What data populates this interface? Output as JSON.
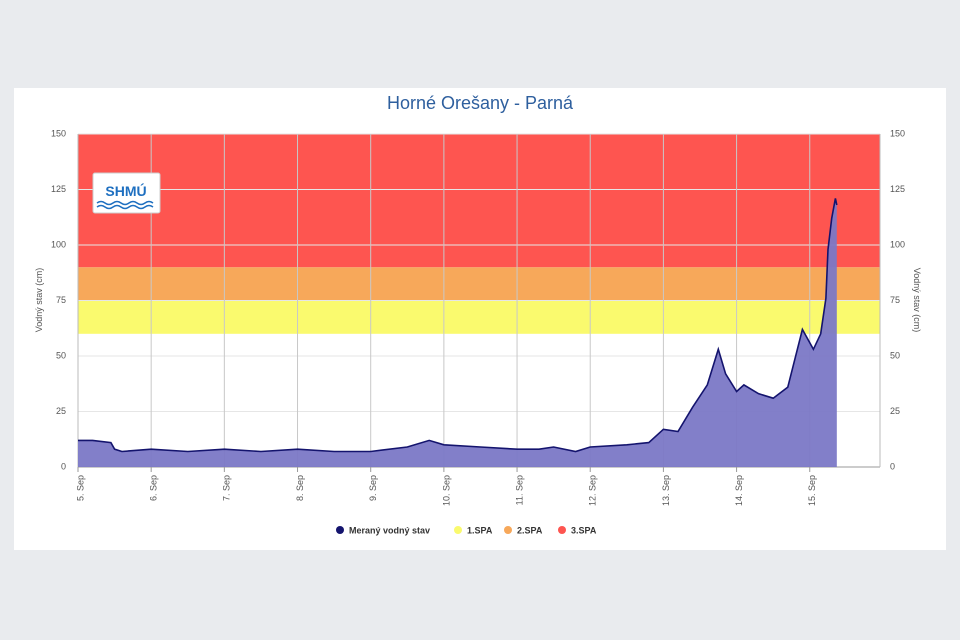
{
  "chart_data": {
    "type": "area",
    "title": "Horné Orešany - Parná",
    "y_label": "Vodný stav (cm)",
    "y2_label": "Vodný stav (cm)",
    "logo_text": "SHMÚ",
    "xlim": [
      5,
      15.96
    ],
    "xticks": [
      {
        "value": 5,
        "label": "5. Sep"
      },
      {
        "value": 6,
        "label": "6. Sep"
      },
      {
        "value": 7,
        "label": "7. Sep"
      },
      {
        "value": 8,
        "label": "8. Sep"
      },
      {
        "value": 9,
        "label": "9. Sep"
      },
      {
        "value": 10,
        "label": "10. Sep"
      },
      {
        "value": 11,
        "label": "11. Sep"
      },
      {
        "value": 12,
        "label": "12. Sep"
      },
      {
        "value": 13,
        "label": "13. Sep"
      },
      {
        "value": 14,
        "label": "14. Sep"
      },
      {
        "value": 15,
        "label": "15. Sep"
      }
    ],
    "ylim": [
      0,
      150
    ],
    "yticks": [
      0,
      25,
      50,
      75,
      100,
      125,
      150
    ],
    "y2lim": [
      0,
      150
    ],
    "y2ticks": [
      0,
      25,
      50,
      75,
      100,
      125,
      150
    ],
    "grid": true,
    "bands": [
      {
        "name": "1.SPA",
        "from": 60,
        "to": 75,
        "color": "#fafa6e"
      },
      {
        "name": "2.SPA",
        "from": 75,
        "to": 90,
        "color": "#f7a85a"
      },
      {
        "name": "3.SPA",
        "from": 90,
        "to": 150,
        "color": "#fe5550"
      }
    ],
    "series": [
      {
        "name": "Meraný vodný stav",
        "color": "#14146e",
        "fill": "#7b78c6",
        "x": [
          5,
          5.2,
          5.45,
          5.5,
          5.6,
          6.0,
          6.5,
          7.0,
          7.5,
          8.0,
          8.5,
          9.0,
          9.5,
          9.8,
          10.0,
          10.5,
          11.0,
          11.3,
          11.5,
          11.8,
          12.0,
          12.5,
          12.8,
          13.0,
          13.2,
          13.4,
          13.6,
          13.75,
          13.85,
          14.0,
          14.1,
          14.3,
          14.5,
          14.7,
          14.9,
          15.05,
          15.15,
          15.22,
          15.25,
          15.3,
          15.35,
          15.37
        ],
        "values": [
          12,
          12,
          11,
          8,
          7,
          8,
          7,
          8,
          7,
          8,
          7,
          7,
          9,
          12,
          10,
          9,
          8,
          8,
          9,
          7,
          9,
          10,
          11,
          17,
          16,
          27,
          37,
          53,
          42,
          34,
          37,
          33,
          31,
          36,
          62,
          53,
          60,
          76,
          98,
          112,
          121,
          118
        ]
      }
    ],
    "legend": "bottom"
  }
}
